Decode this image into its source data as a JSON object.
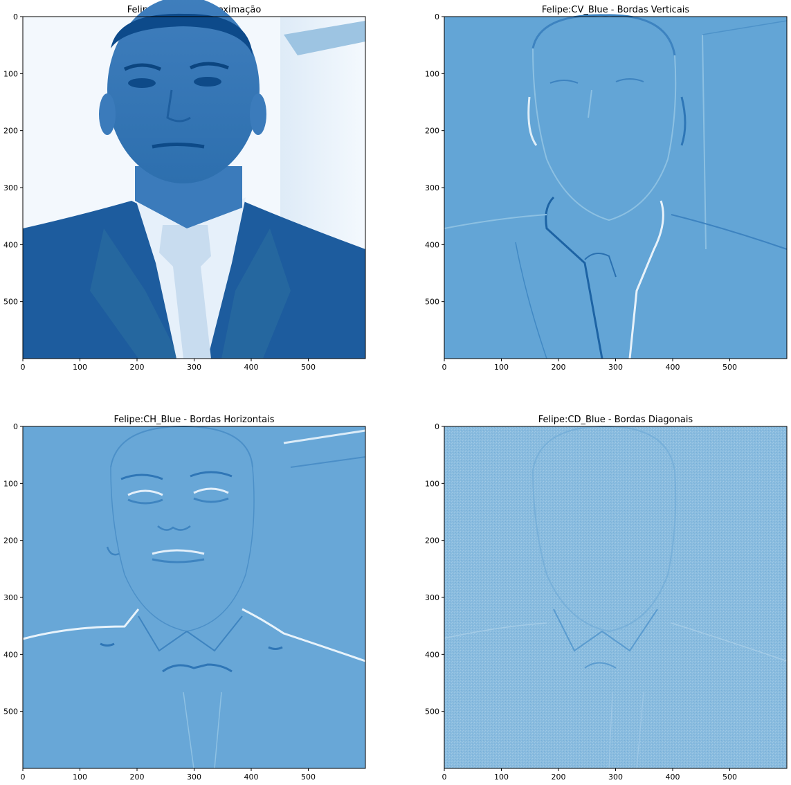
{
  "figure": {
    "cmap": "Blues",
    "background": "#ffffff",
    "panels": [
      {
        "id": "ca",
        "title": "Felipe:CA_Blue - Aproximação",
        "kind": "approximation",
        "base_color": "#4a88c0",
        "x_ticks": [
          0,
          100,
          200,
          300,
          400,
          500
        ],
        "y_ticks": [
          0,
          100,
          200,
          300,
          400,
          500
        ],
        "extent": [
          0,
          600,
          600,
          0
        ]
      },
      {
        "id": "cv",
        "title": "Felipe:CV_Blue - Bordas Verticais",
        "kind": "vertical-edges",
        "base_color": "#63a5d6",
        "x_ticks": [
          0,
          100,
          200,
          300,
          400,
          500
        ],
        "y_ticks": [
          0,
          100,
          200,
          300,
          400,
          500
        ],
        "extent": [
          0,
          600,
          600,
          0
        ]
      },
      {
        "id": "ch",
        "title": "Felipe:CH_Blue - Bordas Horizontais",
        "kind": "horizontal-edges",
        "base_color": "#68a7d7",
        "x_ticks": [
          0,
          100,
          200,
          300,
          400,
          500
        ],
        "y_ticks": [
          0,
          100,
          200,
          300,
          400,
          500
        ],
        "extent": [
          0,
          600,
          600,
          0
        ]
      },
      {
        "id": "cd",
        "title": "Felipe:CD_Blue - Bordas Diagonais",
        "kind": "diagonal-edges",
        "base_color": "#89bcdf",
        "x_ticks": [
          0,
          100,
          200,
          300,
          400,
          500
        ],
        "y_ticks": [
          0,
          100,
          200,
          300,
          400,
          500
        ],
        "extent": [
          0,
          600,
          600,
          0
        ]
      }
    ]
  }
}
